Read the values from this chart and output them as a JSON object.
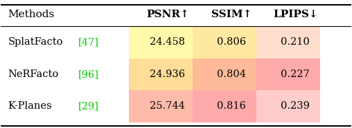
{
  "columns": [
    "Methods",
    "PSNR↑",
    "SSIM↑",
    "LPIPS↓"
  ],
  "col_bold": [
    false,
    true,
    true,
    true
  ],
  "rows": [
    {
      "method": "SplatFacto",
      "ref": "47",
      "psnr": "24.458",
      "ssim": "0.806",
      "lpips": "0.210"
    },
    {
      "method": "NeRFacto",
      "ref": "96",
      "psnr": "24.936",
      "ssim": "0.804",
      "lpips": "0.227"
    },
    {
      "method": "K-Planes",
      "ref": "29",
      "psnr": "25.744",
      "ssim": "0.816",
      "lpips": "0.239"
    }
  ],
  "cell_colors": {
    "psnr": [
      "#fffaaa",
      "#ffdd99",
      "#ffbbaa"
    ],
    "ssim": [
      "#ffe8a0",
      "#ffbb99",
      "#ffaaaa"
    ],
    "lpips": [
      "#ffddcc",
      "#ffaaaa",
      "#ffcccc"
    ]
  },
  "ref_color": "#00cc00",
  "background": "#ffffff",
  "fig_width": 5.08,
  "fig_height": 1.86,
  "dpi": 100
}
